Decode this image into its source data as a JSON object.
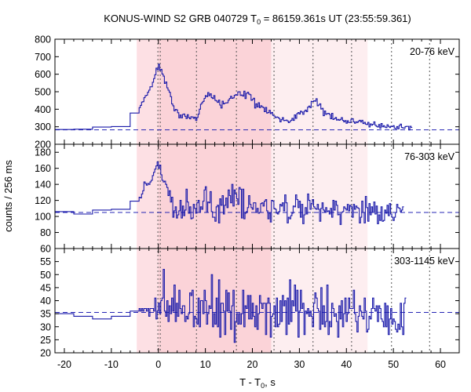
{
  "chart_data": {
    "type": "line",
    "title_main": "KONUS-WIND S2 GRB 040729 T",
    "title_sub": "0",
    "title_rest": " = 86159.361s UT (23:55:59.361)",
    "xlabel_main": "T - T",
    "xlabel_sub": "0",
    "xlabel_rest": ", s",
    "ylabel": "counts / 256 ms",
    "xlim": [
      -22,
      64
    ],
    "x_ticks": [
      -20,
      -10,
      0,
      10,
      20,
      30,
      40,
      50,
      60
    ],
    "shaded_intervals": [
      {
        "from": -4.6,
        "to": 24.0,
        "color": "#fde0e4"
      },
      {
        "from": 0.0,
        "to": 24.0,
        "color": "#fbd3d8"
      },
      {
        "from": 24.0,
        "to": 44.5,
        "color": "#fdeef0"
      }
    ],
    "vertical_lines": [
      -0.1,
      0.4,
      8.1,
      16.6,
      24.6,
      32.9,
      41.1,
      49.6,
      57.7
    ],
    "panels": [
      {
        "band": "20-76 keV",
        "ylim": [
          200,
          800
        ],
        "y_ticks": [
          200,
          300,
          400,
          500,
          600,
          700,
          800
        ],
        "background": 282,
        "pre_burst": [
          {
            "x0": -22,
            "x1": -18,
            "y": 284
          },
          {
            "x0": -18,
            "x1": -14,
            "y": 286
          },
          {
            "x0": -14,
            "x1": -10,
            "y": 298
          },
          {
            "x0": -10,
            "x1": -6,
            "y": 301
          },
          {
            "x0": -6,
            "x1": -4.1,
            "y": 378
          }
        ],
        "bin_start": -4.1,
        "values": [
          409,
          422,
          441,
          443,
          466,
          477,
          480,
          497,
          509,
          528,
          528,
          554,
          575,
          597,
          635,
          626,
          657,
          622,
          628,
          601,
          589,
          547,
          556,
          522,
          509,
          497,
          472,
          430,
          420,
          391,
          399,
          396,
          380,
          351,
          367,
          351,
          370,
          373,
          360,
          347,
          369,
          352,
          345,
          357,
          356,
          348,
          355,
          336,
          353,
          372,
          400,
          429,
          437,
          445,
          462,
          478,
          472,
          495,
          477,
          488,
          466,
          461,
          478,
          451,
          447,
          439,
          452,
          424,
          407,
          446,
          430,
          435,
          436,
          437,
          452,
          462,
          474,
          462,
          465,
          479,
          483,
          480,
          499,
          500,
          479,
          481,
          475,
          503,
          461,
          491,
          497,
          487,
          483,
          451,
          456,
          463,
          407,
          431,
          413,
          437,
          409,
          420,
          414,
          409,
          386,
          410,
          378,
          381,
          394,
          375,
          382,
          365,
          361,
          352,
          356,
          354,
          347,
          328,
          340,
          352,
          335,
          336,
          338,
          333,
          323,
          330,
          337,
          348,
          336,
          368,
          348,
          375,
          381,
          373,
          389,
          384,
          371,
          388,
          395,
          386,
          412,
          418,
          409,
          445,
          444,
          448,
          446,
          460,
          420,
          424,
          431,
          401,
          405,
          363,
          390,
          371,
          375,
          377,
          370,
          346,
          377,
          342,
          346,
          353,
          338,
          342,
          337,
          342,
          352,
          336,
          328,
          335,
          320,
          334,
          324,
          324,
          343,
          346,
          328,
          320,
          328,
          324,
          332,
          337,
          327,
          337,
          318,
          325,
          315,
          313,
          325,
          299,
          316,
          309,
          314,
          328,
          309,
          302,
          299,
          313,
          292,
          318,
          300,
          306,
          298,
          295,
          311,
          302,
          296,
          302,
          301,
          306,
          292,
          290,
          301,
          288,
          307,
          315,
          296,
          293,
          292,
          301,
          302,
          302,
          282,
          303,
          296
        ]
      },
      {
        "band": "76-303 keV",
        "ylim": [
          60,
          190
        ],
        "y_ticks": [
          60,
          80,
          100,
          120,
          140,
          160,
          180
        ],
        "background": 105,
        "pre_burst": [
          {
            "x0": -22,
            "x1": -18,
            "y": 106
          },
          {
            "x0": -18,
            "x1": -14,
            "y": 103
          },
          {
            "x0": -14,
            "x1": -10,
            "y": 108
          },
          {
            "x0": -10,
            "x1": -6,
            "y": 109
          },
          {
            "x0": -6,
            "x1": -4.1,
            "y": 119
          }
        ],
        "bin_start": -4.1,
        "values": [
          124,
          123,
          128,
          132,
          143,
          141,
          139,
          141,
          140,
          143,
          145,
          151,
          155,
          159,
          163,
          168,
          160,
          164,
          152,
          145,
          143,
          144,
          140,
          136,
          126,
          132,
          118,
          124,
          99,
          107,
          112,
          98,
          102,
          107,
          120,
          98,
          113,
          101,
          108,
          134,
          118,
          104,
          112,
          97,
          98,
          115,
          110,
          104,
          117,
          120,
          105,
          112,
          109,
          119,
          133,
          137,
          105,
          118,
          117,
          131,
          106,
          99,
          99,
          94,
          112,
          114,
          92,
          122,
          114,
          126,
          103,
          114,
          123,
          111,
          133,
          126,
          117,
          140,
          113,
          133,
          128,
          122,
          115,
          136,
          134,
          98,
          134,
          97,
          104,
          106,
          111,
          126,
          115,
          111,
          109,
          117,
          117,
          105,
          110,
          104,
          105,
          116,
          117,
          113,
          119,
          121,
          107,
          97,
          104,
          93,
          120,
          119,
          110,
          109,
          104,
          103,
          106,
          115,
          113,
          117,
          107,
          127,
          117,
          92,
          99,
          97,
          101,
          104,
          113,
          112,
          127,
          121,
          111,
          119,
          99,
          115,
          91,
          102,
          111,
          103,
          128,
          120,
          109,
          116,
          121,
          112,
          110,
          109,
          115,
          109,
          94,
          110,
          117,
          108,
          106,
          111,
          106,
          107,
          103,
          110,
          99,
          120,
          108,
          119,
          114,
          102,
          103,
          90,
          105,
          106,
          112,
          110,
          108,
          115,
          107,
          114,
          112,
          99,
          115,
          109,
          113,
          111,
          110,
          92,
          99,
          119,
          105,
          92,
          125,
          111,
          94,
          116,
          102,
          112,
          105,
          118,
          103,
          113,
          91,
          102,
          95,
          112,
          94,
          95,
          108,
          104,
          114,
          101,
          116,
          103,
          99,
          95,
          99,
          105,
          115,
          111,
          110,
          106,
          108,
          112
        ]
      },
      {
        "band": "303-1145 keV",
        "ylim": [
          20,
          60
        ],
        "y_ticks": [
          20,
          25,
          30,
          35,
          40,
          45,
          50,
          55
        ],
        "background": 35.5,
        "pre_burst": [
          {
            "x0": -22,
            "x1": -18,
            "y": 35
          },
          {
            "x0": -18,
            "x1": -14,
            "y": 34
          },
          {
            "x0": -14,
            "x1": -10,
            "y": 33
          },
          {
            "x0": -10,
            "x1": -6,
            "y": 34
          },
          {
            "x0": -6,
            "x1": -4.1,
            "y": 36
          }
        ],
        "bin_start": -4.1,
        "values": [
          37,
          36,
          37,
          36,
          37,
          37,
          36,
          37,
          34,
          37,
          37,
          37,
          36,
          41,
          33,
          36,
          39,
          35,
          40,
          41,
          52,
          36,
          34,
          40,
          32,
          38,
          35,
          41,
          36,
          46,
          32,
          39,
          34,
          44,
          37,
          35,
          38,
          38,
          32,
          34,
          33,
          35,
          43,
          42,
          44,
          30,
          34,
          33,
          31,
          41,
          30,
          40,
          40,
          35,
          44,
          40,
          31,
          35,
          38,
          37,
          50,
          30,
          35,
          31,
          41,
          30,
          48,
          26,
          39,
          39,
          36,
          27,
          44,
          36,
          43,
          36,
          29,
          38,
          44,
          24,
          32,
          35,
          31,
          35,
          31,
          35,
          44,
          30,
          38,
          37,
          42,
          33,
          42,
          33,
          39,
          34,
          30,
          38,
          29,
          35,
          42,
          39,
          37,
          39,
          39,
          27,
          39,
          41,
          39,
          26,
          34,
          35,
          38,
          30,
          41,
          30,
          31,
          40,
          32,
          42,
          38,
          40,
          27,
          41,
          31,
          48,
          32,
          40,
          38,
          46,
          36,
          44,
          26,
          36,
          44,
          37,
          39,
          27,
          36,
          35,
          37,
          34,
          36,
          34,
          30,
          39,
          43,
          41,
          37,
          36,
          29,
          45,
          31,
          38,
          30,
          32,
          46,
          27,
          32,
          30,
          39,
          37,
          34,
          35,
          32,
          26,
          38,
          33,
          40,
          30,
          35,
          41,
          32,
          35,
          41,
          37,
          37,
          37,
          44,
          35,
          32,
          28,
          34,
          38,
          36,
          34,
          33,
          41,
          36,
          28,
          29,
          34,
          33,
          37,
          41,
          37,
          36,
          38,
          32,
          38,
          37,
          33,
          32,
          30,
          39,
          30,
          38,
          27,
          33,
          37,
          31,
          33,
          32,
          29,
          28,
          31,
          29,
          39,
          30,
          27,
          39,
          41
        ]
      }
    ],
    "colors": {
      "series": "#1a1aaa",
      "background_line": "#2424b4",
      "grid": "#555555",
      "axis": "#000000"
    }
  }
}
